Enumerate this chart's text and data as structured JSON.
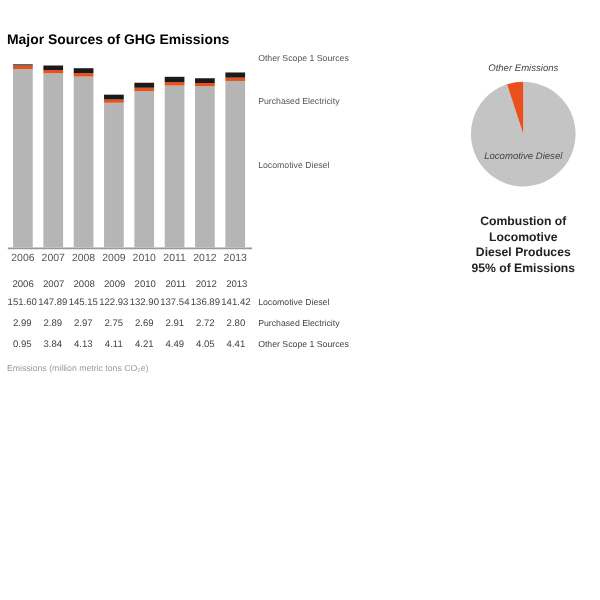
{
  "chart_data": [
    {
      "type": "bar",
      "title": "Major Sources of GHG Emissions",
      "stacked": true,
      "legend": "right",
      "categories": [
        "2006",
        "2007",
        "2008",
        "2009",
        "2010",
        "2011",
        "2012",
        "2013"
      ],
      "series": [
        {
          "name": "Locomotive Diesel",
          "color": "#b5b5b5",
          "values": [
            151.6,
            147.89,
            145.15,
            122.93,
            132.9,
            137.54,
            136.89,
            141.42
          ],
          "value_labels": [
            "151.60",
            "147.89",
            "145.15",
            "122.93",
            "132.90",
            "137.54",
            "136.89",
            "141.42"
          ]
        },
        {
          "name": "Purchased Electricity",
          "color": "#e8501c",
          "values": [
            2.99,
            2.89,
            2.97,
            2.75,
            2.69,
            2.91,
            2.72,
            2.8
          ],
          "value_labels": [
            "2.99",
            "2.89",
            "2.97",
            "2.75",
            "2.69",
            "2.91",
            "2.72",
            "2.80"
          ]
        },
        {
          "name": "Other Scope 1 Sources",
          "color": "#1a1a1a",
          "values": [
            0.95,
            3.84,
            4.13,
            4.11,
            4.21,
            4.49,
            4.05,
            4.41
          ],
          "value_labels": [
            "0.95",
            "3.84",
            "4.13",
            "4.11",
            "4.21",
            "4.49",
            "4.05",
            "4.41"
          ]
        }
      ],
      "annotations": [
        "Emissions (million metric tons CO₂e)"
      ]
    },
    {
      "type": "pie",
      "categories": [
        "Locomotive Diesel",
        "Other Emissions"
      ],
      "values": [
        95,
        5
      ],
      "colors": [
        "#c4c4c4",
        "#e8501c"
      ],
      "annotations": [
        "Combustion of Locomotive Diesel Produces 95% of Emissions"
      ]
    }
  ]
}
